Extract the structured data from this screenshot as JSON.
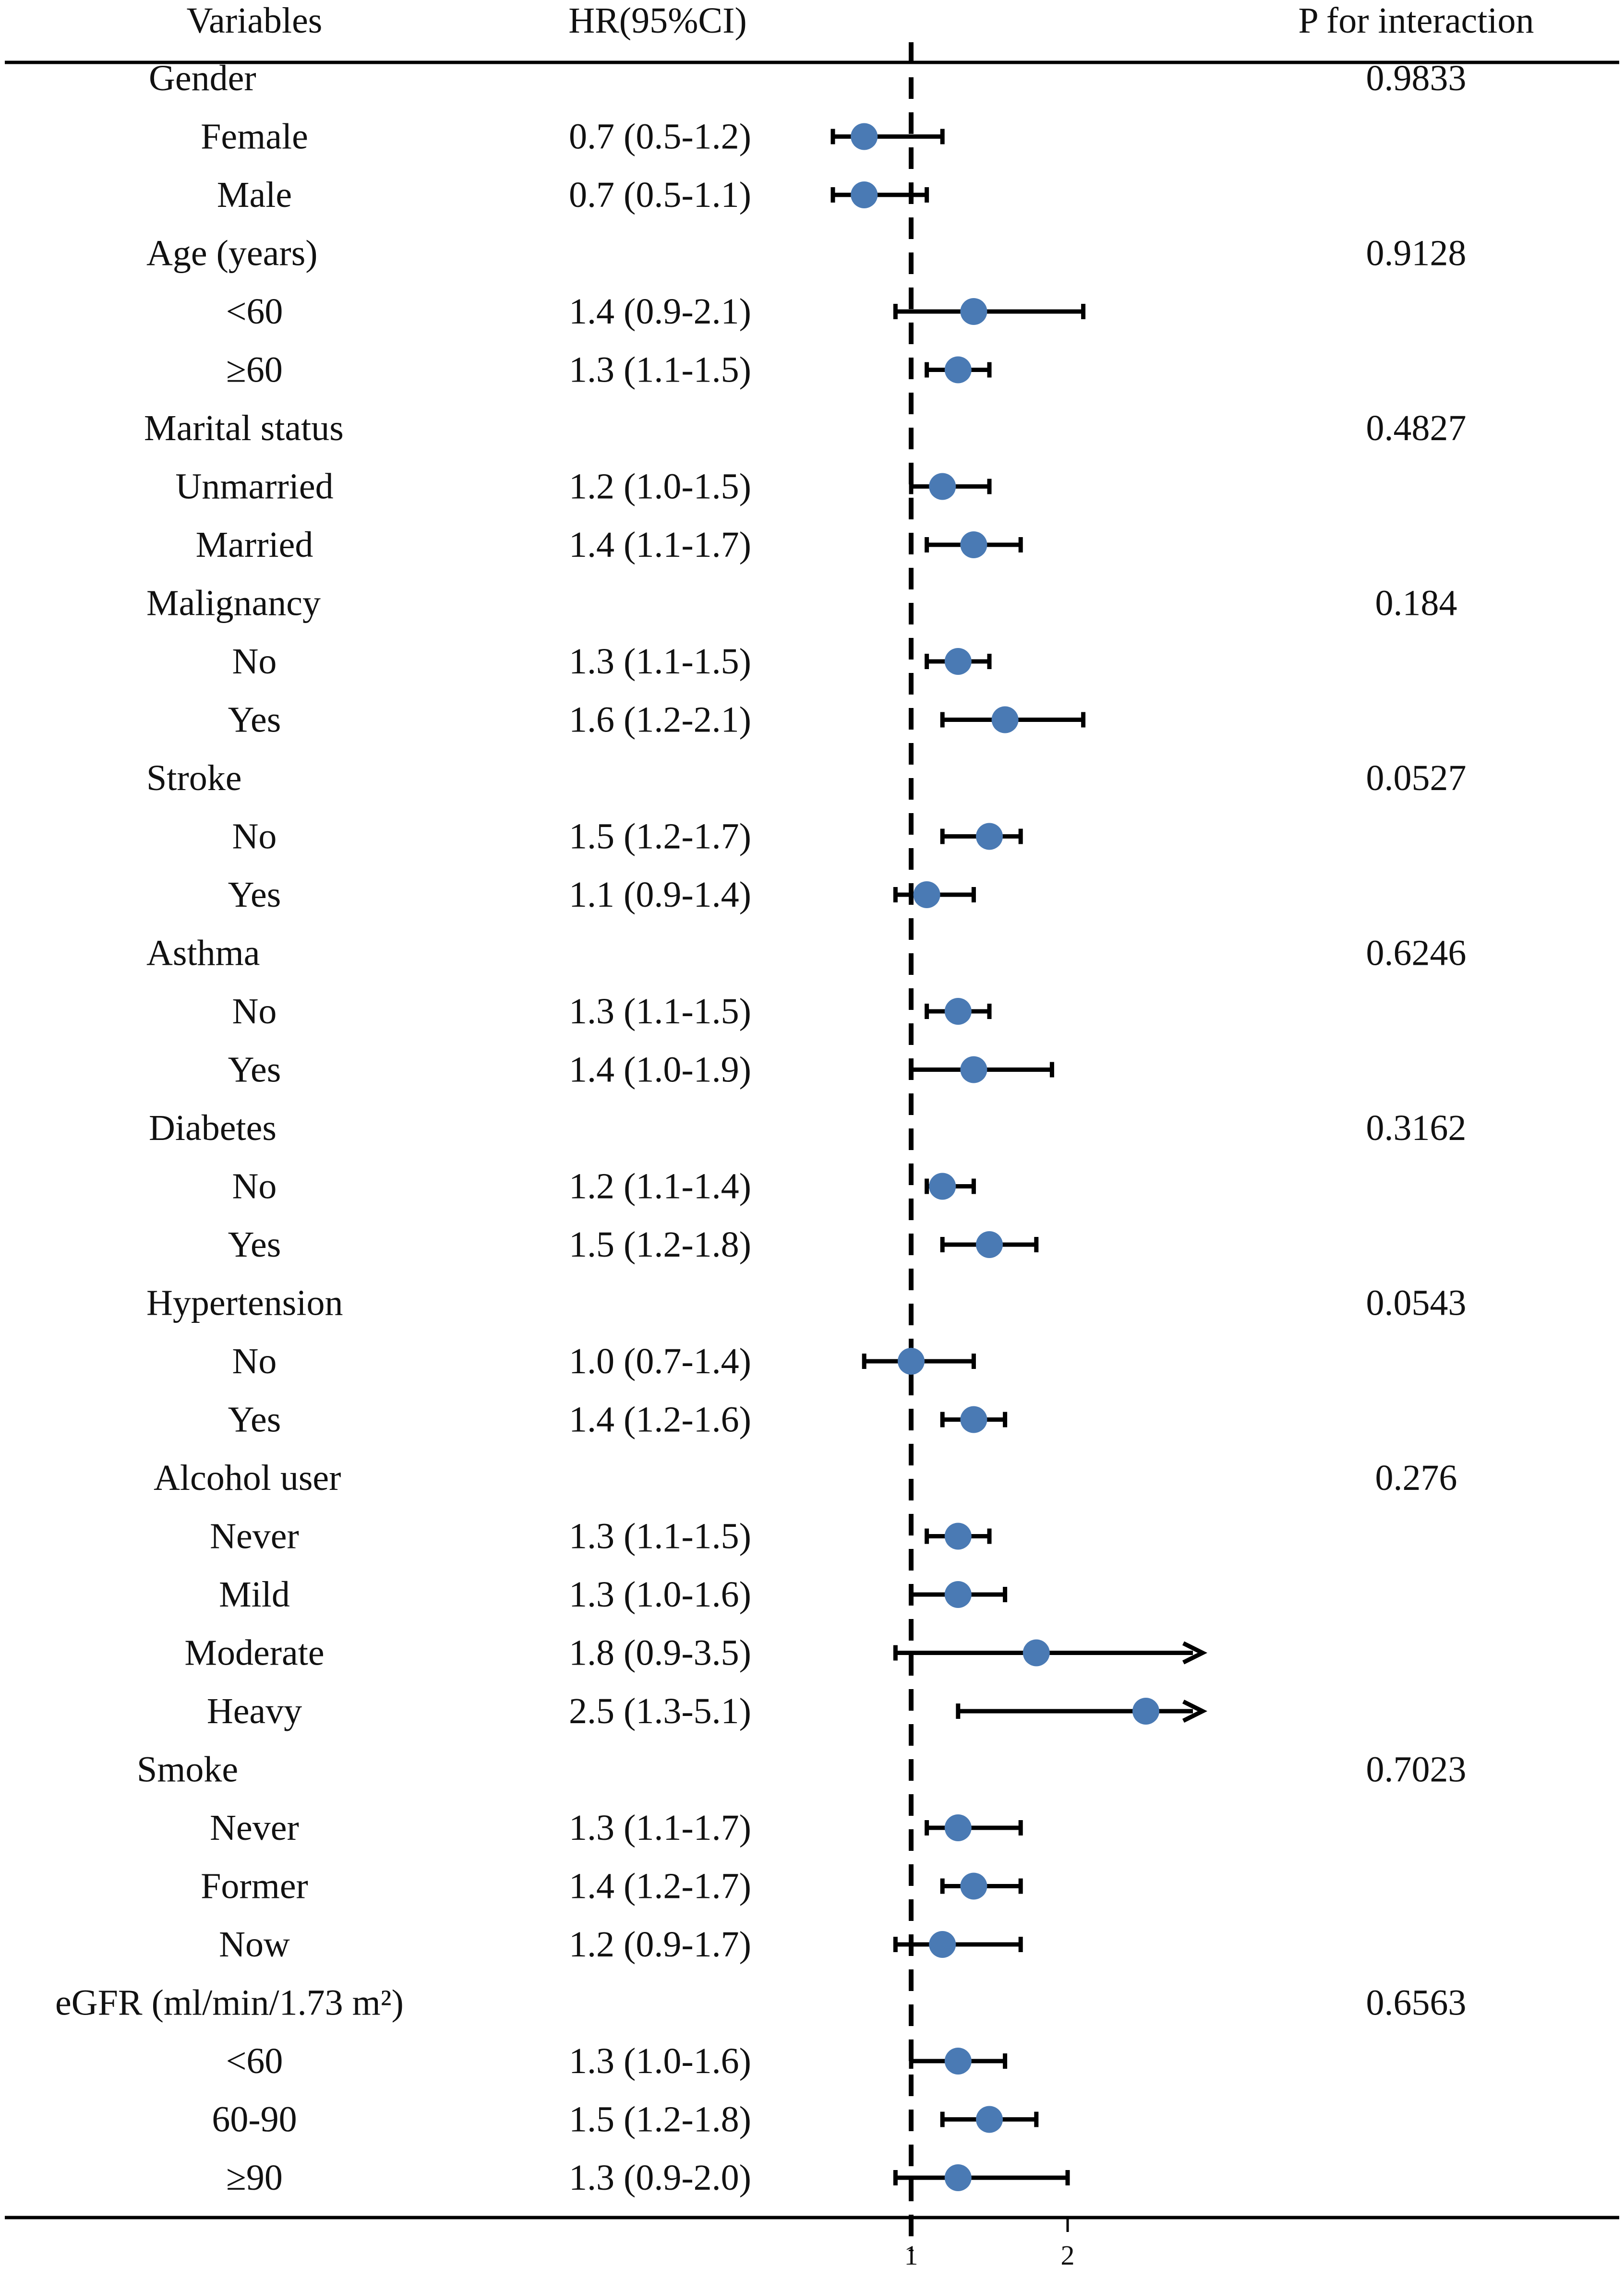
{
  "chart_data": {
    "type": "forest",
    "headers": {
      "variables": "Variables",
      "hr": "HR(95%CI)",
      "p": "P for interaction"
    },
    "reference_line": 1,
    "x_ticks": [
      1,
      2
    ],
    "x_range": [
      0.45,
      2.95
    ],
    "marker_color": "#4a7ab4",
    "rows": [
      {
        "kind": "group",
        "label": "Gender",
        "p": "0.9833"
      },
      {
        "kind": "item",
        "label": "Female",
        "hr_text": "0.7 (0.5-1.2)",
        "hr": 0.7,
        "lo": 0.5,
        "hi": 1.2
      },
      {
        "kind": "item",
        "label": "Male",
        "hr_text": "0.7 (0.5-1.1)",
        "hr": 0.7,
        "lo": 0.5,
        "hi": 1.1
      },
      {
        "kind": "group",
        "label": "Age (years)",
        "p": "0.9128"
      },
      {
        "kind": "item",
        "label": "<60",
        "hr_text": "1.4 (0.9-2.1)",
        "hr": 1.4,
        "lo": 0.9,
        "hi": 2.1
      },
      {
        "kind": "item",
        "label": "≥60",
        "hr_text": "1.3 (1.1-1.5)",
        "hr": 1.3,
        "lo": 1.1,
        "hi": 1.5
      },
      {
        "kind": "group",
        "label": "Marital status",
        "p": "0.4827"
      },
      {
        "kind": "item",
        "label": "Unmarried",
        "hr_text": "1.2 (1.0-1.5)",
        "hr": 1.2,
        "lo": 1.0,
        "hi": 1.5
      },
      {
        "kind": "item",
        "label": "Married",
        "hr_text": "1.4 (1.1-1.7)",
        "hr": 1.4,
        "lo": 1.1,
        "hi": 1.7
      },
      {
        "kind": "group",
        "label": "Malignancy",
        "p": "0.184"
      },
      {
        "kind": "item",
        "label": "No",
        "hr_text": "1.3 (1.1-1.5)",
        "hr": 1.3,
        "lo": 1.1,
        "hi": 1.5
      },
      {
        "kind": "item",
        "label": "Yes",
        "hr_text": "1.6 (1.2-2.1)",
        "hr": 1.6,
        "lo": 1.2,
        "hi": 2.1
      },
      {
        "kind": "group",
        "label": "Stroke",
        "p": "0.0527"
      },
      {
        "kind": "item",
        "label": "No",
        "hr_text": "1.5 (1.2-1.7)",
        "hr": 1.5,
        "lo": 1.2,
        "hi": 1.7
      },
      {
        "kind": "item",
        "label": "Yes",
        "hr_text": "1.1 (0.9-1.4)",
        "hr": 1.1,
        "lo": 0.9,
        "hi": 1.4
      },
      {
        "kind": "group",
        "label": "Asthma",
        "p": "0.6246"
      },
      {
        "kind": "item",
        "label": "No",
        "hr_text": "1.3 (1.1-1.5)",
        "hr": 1.3,
        "lo": 1.1,
        "hi": 1.5
      },
      {
        "kind": "item",
        "label": "Yes",
        "hr_text": "1.4 (1.0-1.9)",
        "hr": 1.4,
        "lo": 1.0,
        "hi": 1.9
      },
      {
        "kind": "group",
        "label": "Diabetes",
        "p": "0.3162"
      },
      {
        "kind": "item",
        "label": "No",
        "hr_text": "1.2 (1.1-1.4)",
        "hr": 1.2,
        "lo": 1.1,
        "hi": 1.4
      },
      {
        "kind": "item",
        "label": "Yes",
        "hr_text": "1.5 (1.2-1.8)",
        "hr": 1.5,
        "lo": 1.2,
        "hi": 1.8
      },
      {
        "kind": "group",
        "label": "Hypertension",
        "p": "0.0543"
      },
      {
        "kind": "item",
        "label": "No",
        "hr_text": "1.0 (0.7-1.4)",
        "hr": 1.0,
        "lo": 0.7,
        "hi": 1.4
      },
      {
        "kind": "item",
        "label": "Yes",
        "hr_text": "1.4 (1.2-1.6)",
        "hr": 1.4,
        "lo": 1.2,
        "hi": 1.6
      },
      {
        "kind": "group",
        "label": "Alcohol user",
        "p": "0.276"
      },
      {
        "kind": "item",
        "label": "Never",
        "hr_text": "1.3 (1.1-1.5)",
        "hr": 1.3,
        "lo": 1.1,
        "hi": 1.5
      },
      {
        "kind": "item",
        "label": "Mild",
        "hr_text": "1.3 (1.0-1.6)",
        "hr": 1.3,
        "lo": 1.0,
        "hi": 1.6
      },
      {
        "kind": "item",
        "label": "Moderate",
        "hr_text": "1.8 (0.9-3.5)",
        "hr": 1.8,
        "lo": 0.9,
        "hi": 3.5
      },
      {
        "kind": "item",
        "label": "Heavy",
        "hr_text": "2.5 (1.3-5.1)",
        "hr": 2.5,
        "lo": 1.3,
        "hi": 5.1
      },
      {
        "kind": "group",
        "label": "Smoke",
        "p": "0.7023"
      },
      {
        "kind": "item",
        "label": "Never",
        "hr_text": "1.3 (1.1-1.7)",
        "hr": 1.3,
        "lo": 1.1,
        "hi": 1.7
      },
      {
        "kind": "item",
        "label": "Former",
        "hr_text": "1.4 (1.2-1.7)",
        "hr": 1.4,
        "lo": 1.2,
        "hi": 1.7
      },
      {
        "kind": "item",
        "label": "Now",
        "hr_text": "1.2 (0.9-1.7)",
        "hr": 1.2,
        "lo": 0.9,
        "hi": 1.7
      },
      {
        "kind": "group",
        "label": "eGFR (ml/min/1.73 m²)",
        "p": "0.6563"
      },
      {
        "kind": "item",
        "label": "<60",
        "hr_text": "1.3 (1.0-1.6)",
        "hr": 1.3,
        "lo": 1.0,
        "hi": 1.6
      },
      {
        "kind": "item",
        "label": "60-90",
        "hr_text": "1.5 (1.2-1.8)",
        "hr": 1.5,
        "lo": 1.2,
        "hi": 1.8
      },
      {
        "kind": "item",
        "label": "≥90",
        "hr_text": "1.3 (0.9-2.0)",
        "hr": 1.3,
        "lo": 0.9,
        "hi": 2.0
      }
    ]
  }
}
